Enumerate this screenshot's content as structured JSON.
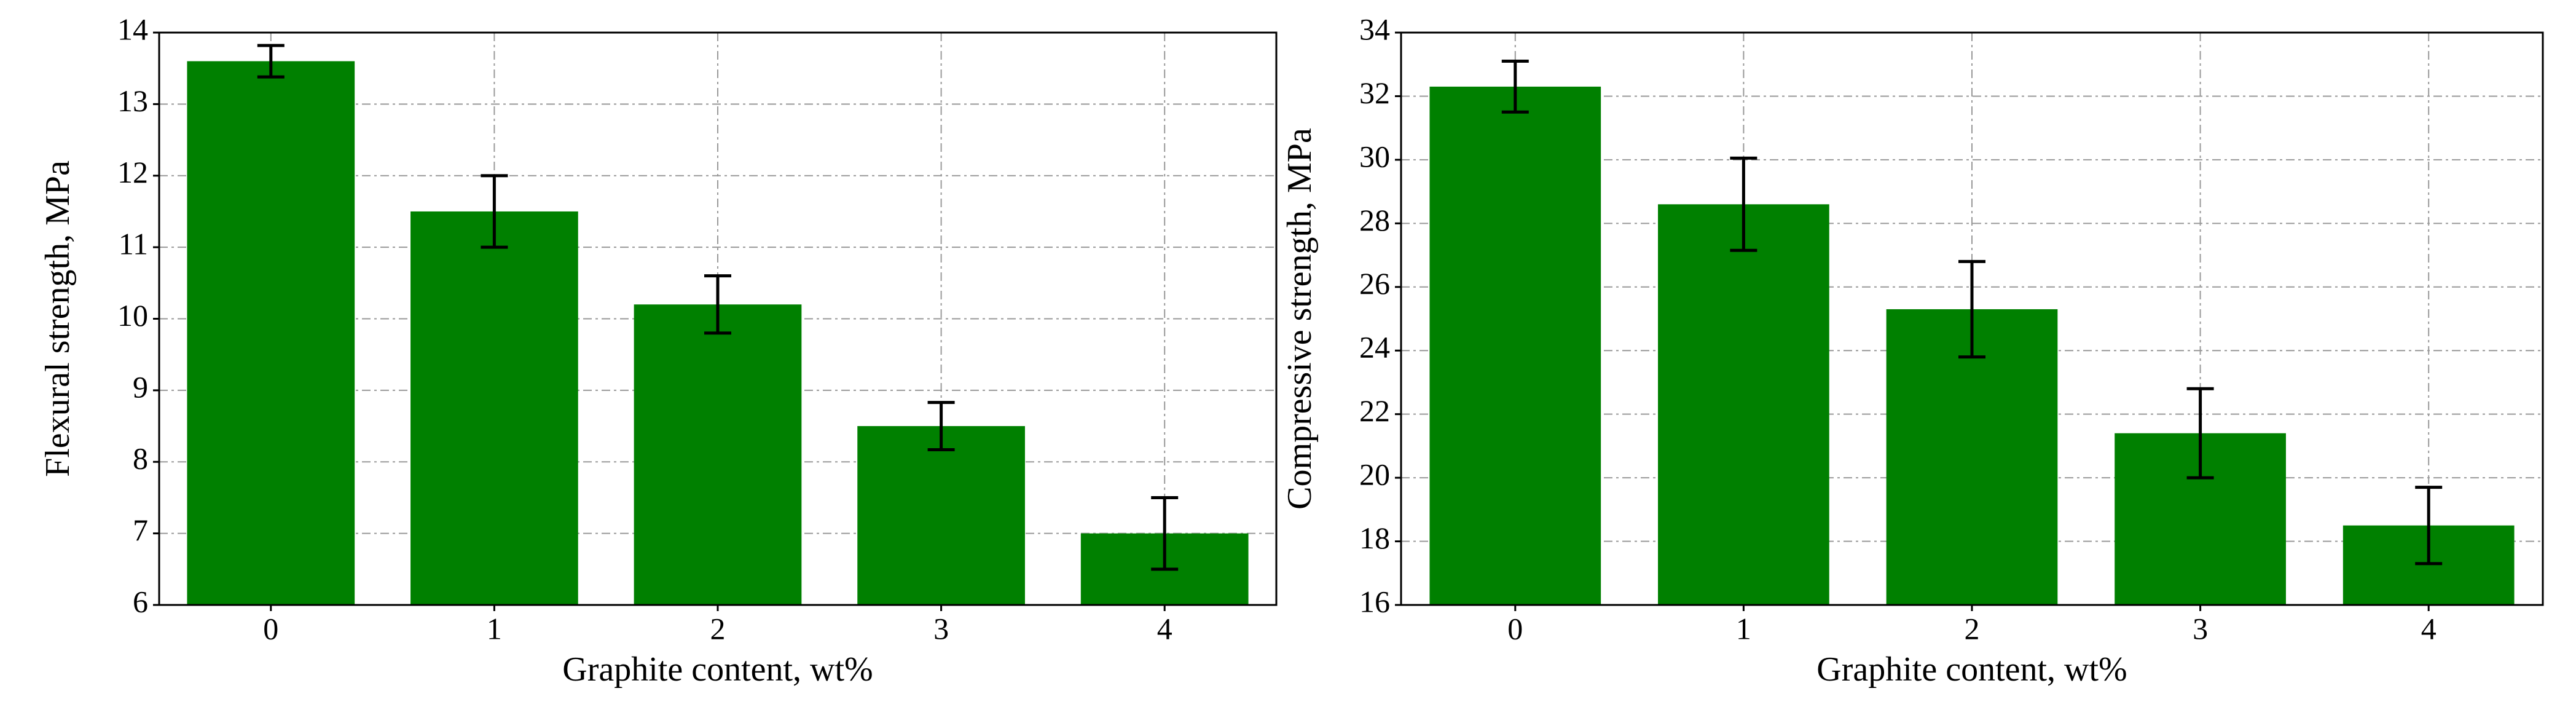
{
  "chart_data": [
    {
      "type": "bar",
      "xlabel": "Graphite content, wt%",
      "ylabel": "Flexural strength, MPa",
      "categories": [
        "0",
        "1",
        "2",
        "3",
        "4"
      ],
      "values": [
        13.6,
        11.5,
        10.2,
        8.5,
        7.0
      ],
      "errors": [
        0.22,
        0.5,
        0.4,
        0.33,
        0.5
      ],
      "color": "#008000",
      "ylim": [
        6,
        14
      ],
      "yticks": [
        6,
        7,
        8,
        9,
        10,
        11,
        12,
        13,
        14
      ],
      "grid": true
    },
    {
      "type": "bar",
      "xlabel": "Graphite content, wt%",
      "ylabel": "Compressive strength, MPa",
      "categories": [
        "0",
        "1",
        "2",
        "3",
        "4"
      ],
      "values": [
        32.3,
        28.6,
        25.3,
        21.4,
        18.5
      ],
      "errors": [
        0.8,
        1.45,
        1.5,
        1.4,
        1.2
      ],
      "color": "#008000",
      "ylim": [
        16,
        34
      ],
      "yticks": [
        16,
        18,
        20,
        22,
        24,
        26,
        28,
        30,
        32,
        34
      ],
      "grid": true
    }
  ]
}
